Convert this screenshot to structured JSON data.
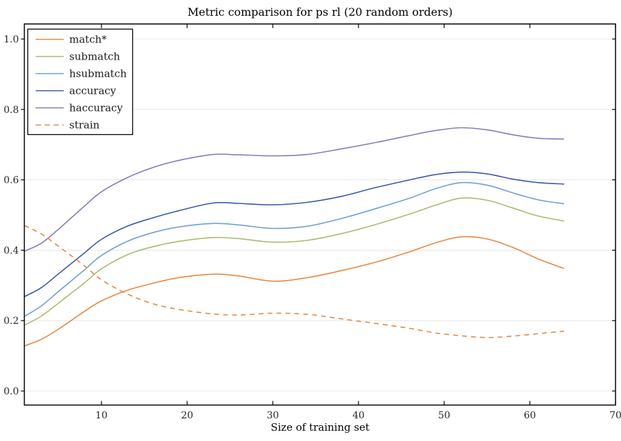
{
  "figure": {
    "title": "Metric comparison for ps rl (20 random orders)",
    "xlabel": "Size of training set"
  },
  "chart_data": {
    "type": "line",
    "title": "Metric comparison for ps rl (20 random orders)",
    "xlabel": "Size of training set",
    "ylabel": "",
    "xlim": [
      1,
      70
    ],
    "ylim": [
      -0.04,
      1.04
    ],
    "x_ticks": [
      10,
      20,
      30,
      40,
      50,
      60,
      70
    ],
    "y_ticks": [
      {
        "label": "0.0",
        "value": 0.0
      },
      {
        "label": "0.2",
        "value": 0.2
      },
      {
        "label": "0.4",
        "value": 0.4
      },
      {
        "label": "0.6",
        "value": 0.6
      },
      {
        "label": "0.8",
        "value": 0.8
      },
      {
        "label": "1.0",
        "value": 1.0
      }
    ],
    "grid": "horizontal",
    "grid_color": "#e5e5e5",
    "legend_position": "upper left",
    "x": [
      1,
      3,
      5,
      8,
      10,
      13,
      16,
      19,
      23,
      26,
      30,
      34,
      38,
      42,
      46,
      49,
      52,
      55,
      58,
      61,
      64
    ],
    "series": [
      {
        "name": "match*",
        "color": "#e8873c",
        "style": "solid",
        "values": [
          0.128,
          0.147,
          0.176,
          0.226,
          0.256,
          0.286,
          0.306,
          0.322,
          0.332,
          0.327,
          0.312,
          0.322,
          0.342,
          0.366,
          0.396,
          0.421,
          0.438,
          0.432,
          0.408,
          0.375,
          0.348
        ]
      },
      {
        "name": "submatch",
        "color": "#a9ba6d",
        "style": "solid",
        "values": [
          0.187,
          0.213,
          0.25,
          0.307,
          0.347,
          0.387,
          0.41,
          0.425,
          0.436,
          0.433,
          0.423,
          0.428,
          0.447,
          0.473,
          0.503,
          0.528,
          0.548,
          0.542,
          0.52,
          0.497,
          0.483
        ]
      },
      {
        "name": "hsubmatch",
        "color": "#6b9fd3",
        "style": "solid",
        "values": [
          0.212,
          0.242,
          0.283,
          0.344,
          0.385,
          0.425,
          0.45,
          0.466,
          0.476,
          0.472,
          0.462,
          0.468,
          0.49,
          0.518,
          0.548,
          0.575,
          0.592,
          0.585,
          0.563,
          0.543,
          0.532
        ]
      },
      {
        "name": "accuracy",
        "color": "#3a57a7",
        "style": "solid",
        "values": [
          0.268,
          0.294,
          0.333,
          0.392,
          0.431,
          0.468,
          0.492,
          0.512,
          0.534,
          0.533,
          0.529,
          0.536,
          0.553,
          0.578,
          0.6,
          0.615,
          0.622,
          0.617,
          0.602,
          0.592,
          0.588
        ]
      },
      {
        "name": "haccuracy",
        "color": "#8679bd",
        "style": "solid",
        "values": [
          0.397,
          0.42,
          0.46,
          0.525,
          0.566,
          0.606,
          0.635,
          0.655,
          0.672,
          0.671,
          0.668,
          0.672,
          0.688,
          0.706,
          0.726,
          0.74,
          0.748,
          0.742,
          0.728,
          0.718,
          0.716
        ]
      },
      {
        "name": "strain",
        "color": "#e8873c",
        "style": "dashed",
        "values": [
          0.47,
          0.446,
          0.411,
          0.356,
          0.316,
          0.276,
          0.248,
          0.232,
          0.219,
          0.216,
          0.221,
          0.218,
          0.205,
          0.192,
          0.178,
          0.165,
          0.157,
          0.152,
          0.156,
          0.163,
          0.17
        ]
      }
    ]
  }
}
